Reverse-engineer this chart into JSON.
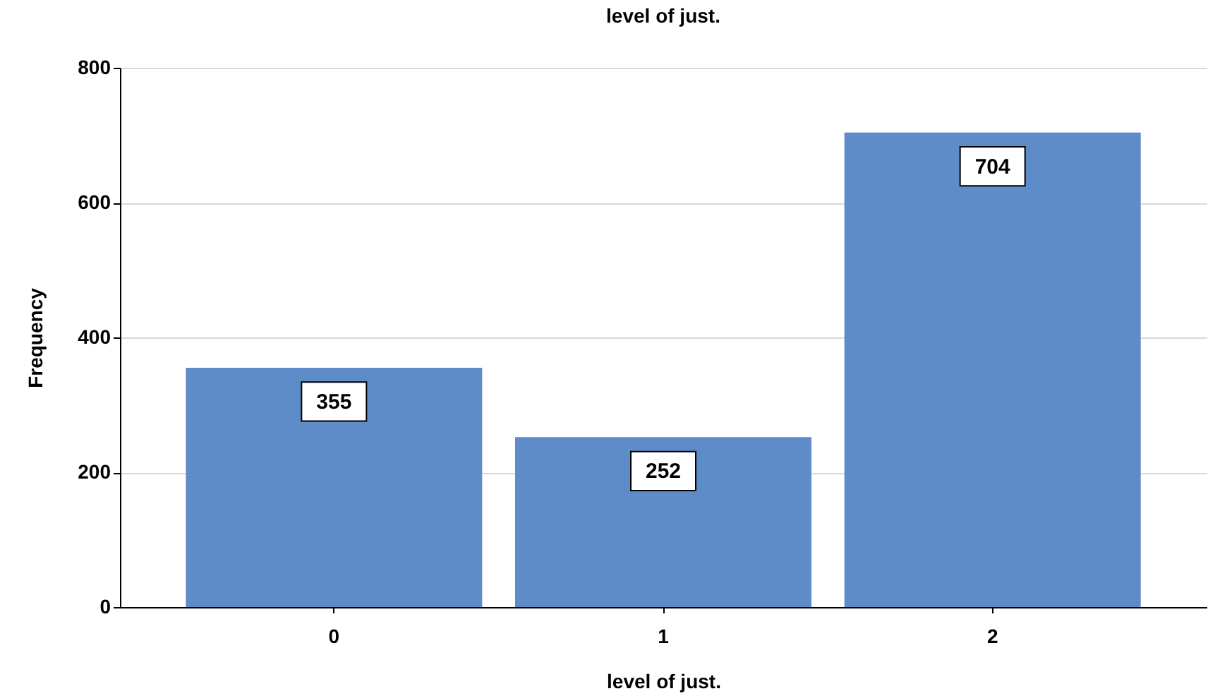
{
  "chart_data": {
    "type": "bar",
    "title": "level of just.",
    "xlabel": "level of just.",
    "ylabel": "Frequency",
    "categories": [
      "0",
      "1",
      "2"
    ],
    "values": [
      355,
      252,
      704
    ],
    "color": "#5e8cc8",
    "ylim": [
      0,
      800
    ],
    "yticks": [
      0,
      200,
      400,
      600,
      800
    ],
    "grid": "y",
    "data_labels": true
  }
}
